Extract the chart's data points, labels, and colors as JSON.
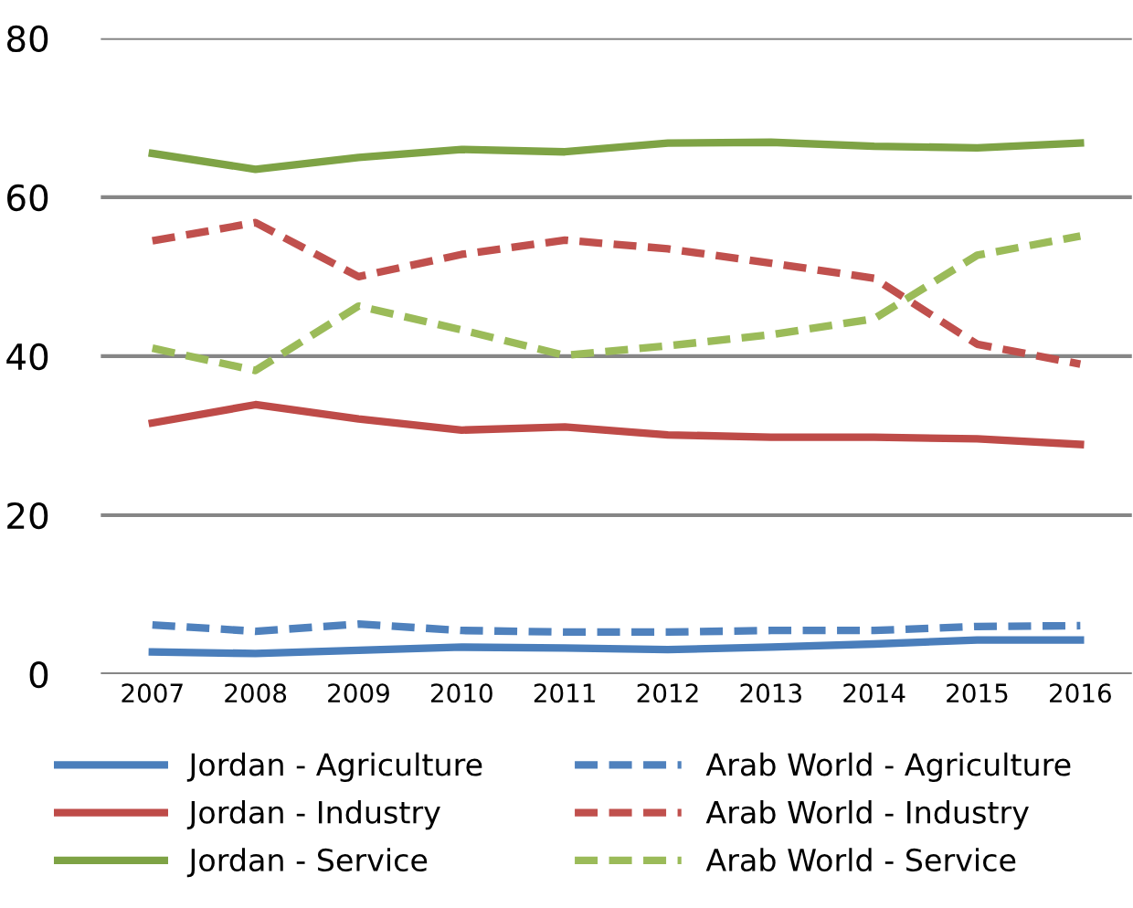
{
  "chart_data": {
    "type": "line",
    "categories": [
      "2007",
      "2008",
      "2009",
      "2010",
      "2011",
      "2012",
      "2013",
      "2014",
      "2015",
      "2016"
    ],
    "series": [
      {
        "name": "Jordan - Agriculture",
        "color": "#4a7ebb",
        "line_style": "solid",
        "values": [
          2.8,
          2.6,
          3.0,
          3.4,
          3.3,
          3.1,
          3.4,
          3.8,
          4.3,
          4.3
        ]
      },
      {
        "name": "Jordan - Industry",
        "color": "#be4b48",
        "line_style": "solid",
        "values": [
          31.6,
          33.9,
          32.1,
          30.7,
          31.1,
          30.1,
          29.8,
          29.8,
          29.6,
          28.9
        ]
      },
      {
        "name": "Jordan - Service",
        "color": "#7ea345",
        "line_style": "solid",
        "values": [
          65.5,
          63.5,
          65.0,
          66.0,
          65.7,
          66.8,
          66.9,
          66.4,
          66.2,
          66.8
        ]
      },
      {
        "name": "Arab World - Agriculture",
        "color": "#4f81bd",
        "line_style": "dashed",
        "values": [
          6.2,
          5.4,
          6.3,
          5.5,
          5.3,
          5.3,
          5.5,
          5.5,
          6.0,
          6.1
        ]
      },
      {
        "name": "Arab World - Industry",
        "color": "#c0504d",
        "line_style": "dashed",
        "values": [
          54.5,
          56.8,
          50.0,
          52.8,
          54.6,
          53.5,
          51.7,
          49.8,
          41.5,
          39.0
        ]
      },
      {
        "name": "Arab World - Service",
        "color": "#9bbb59",
        "line_style": "dashed",
        "values": [
          41.0,
          38.2,
          46.3,
          43.3,
          40.1,
          41.3,
          42.7,
          44.7,
          52.7,
          55.1
        ]
      }
    ],
    "ylim": [
      0,
      80
    ],
    "yticks": [
      0,
      20,
      40,
      60,
      80
    ],
    "grid": "y",
    "legend": "bottom",
    "marker": "none"
  }
}
